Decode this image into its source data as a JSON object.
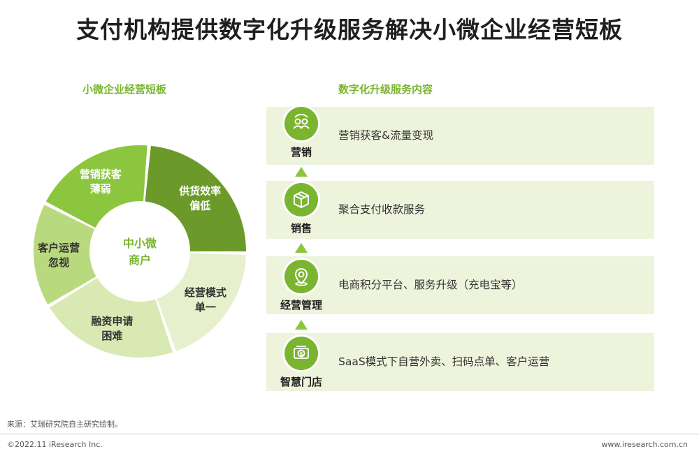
{
  "title": "支付机构提供数字化升级服务解决小微企业经营短板",
  "left_section": {
    "heading": "小微企业经营短板",
    "center_label": [
      "中小微",
      "商户"
    ],
    "segments": [
      {
        "label": [
          "营销获客",
          "薄弱"
        ],
        "color": "#8cc63f",
        "text_color": "#ffffff"
      },
      {
        "label": [
          "供货效率",
          "偏低"
        ],
        "color": "#6c9a2a",
        "text_color": "#ffffff"
      },
      {
        "label": [
          "经营模式",
          "单一"
        ],
        "color": "#e6f0cc",
        "text_color": "#333333"
      },
      {
        "label": [
          "融资申请",
          "困难"
        ],
        "color": "#d9e9b3",
        "text_color": "#333333"
      },
      {
        "label": [
          "客户运营",
          "忽视"
        ],
        "color": "#b9d97e",
        "text_color": "#333333"
      }
    ]
  },
  "right_section": {
    "heading": "数字化升级服务内容",
    "steps": [
      {
        "label": "营销",
        "icon": "people-cycle-icon",
        "text": "营销获客&流量变现"
      },
      {
        "label": "销售",
        "icon": "package-box-icon",
        "text": "聚合支付收款服务"
      },
      {
        "label": "经营管理",
        "icon": "location-pin-icon",
        "text": "电商积分平台、服务升级（充电宝等）"
      },
      {
        "label": "智慧门店",
        "icon": "money-dollar-icon",
        "text": "SaaS模式下自营外卖、扫码点单、客户运营"
      }
    ]
  },
  "source": "来源：艾瑞研究院自主研究绘制。",
  "copyright": "©2022.11 iResearch Inc.",
  "website": "www.iresearch.com.cn",
  "colors": {
    "accent": "#7ab52f",
    "panel": "#eef4dc",
    "arrow": "#8cc63f"
  }
}
